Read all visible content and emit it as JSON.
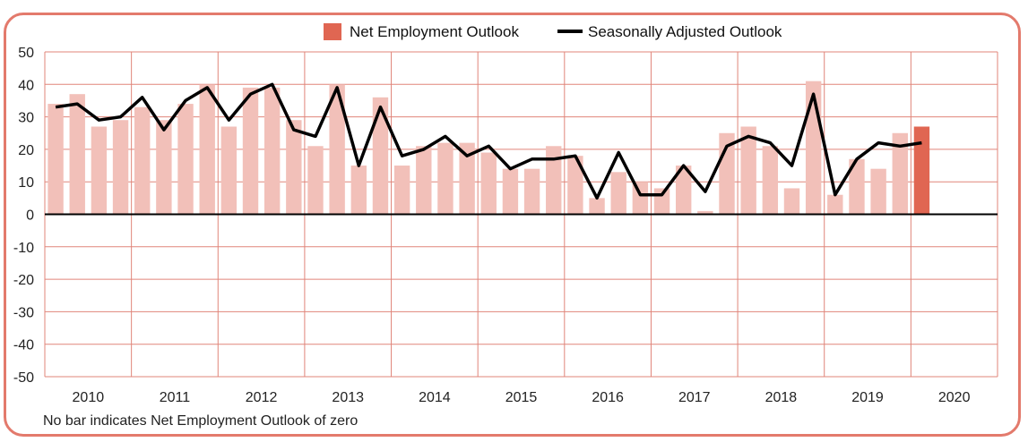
{
  "chart_data": {
    "type": "bar",
    "title": "",
    "xlabel": "",
    "ylabel": "",
    "ylim": [
      -50,
      50
    ],
    "yticks": [
      50,
      40,
      30,
      20,
      10,
      0,
      -10,
      -20,
      -30,
      -40,
      -50
    ],
    "year_labels": [
      "2010",
      "2011",
      "2012",
      "2013",
      "2014",
      "2015",
      "2016",
      "2017",
      "2018",
      "2019",
      "2020"
    ],
    "quarters": [
      "2010 Q1",
      "2010 Q2",
      "2010 Q3",
      "2010 Q4",
      "2011 Q1",
      "2011 Q2",
      "2011 Q3",
      "2011 Q4",
      "2012 Q1",
      "2012 Q2",
      "2012 Q3",
      "2012 Q4",
      "2013 Q1",
      "2013 Q2",
      "2013 Q3",
      "2013 Q4",
      "2014 Q1",
      "2014 Q2",
      "2014 Q3",
      "2014 Q4",
      "2015 Q1",
      "2015 Q2",
      "2015 Q3",
      "2015 Q4",
      "2016 Q1",
      "2016 Q2",
      "2016 Q3",
      "2016 Q4",
      "2017 Q1",
      "2017 Q2",
      "2017 Q3",
      "2017 Q4",
      "2018 Q1",
      "2018 Q2",
      "2018 Q3",
      "2018 Q4",
      "2019 Q1",
      "2019 Q2",
      "2019 Q3",
      "2019 Q4",
      "2020 Q1"
    ],
    "grid": true,
    "legend_position": "top-center",
    "series": [
      {
        "name": "Net Employment Outlook",
        "type": "bar",
        "color": "#f2c0b9",
        "highlight_color": "#e06652",
        "values": [
          34,
          37,
          27,
          29,
          33,
          29,
          34,
          40,
          27,
          39,
          39,
          29,
          21,
          40,
          15,
          36,
          15,
          21,
          22,
          22,
          19,
          14,
          14,
          21,
          18,
          5,
          13,
          10,
          8,
          15,
          1,
          25,
          27,
          21,
          8,
          41,
          6,
          17,
          14,
          25,
          27
        ]
      },
      {
        "name": "Seasonally Adjusted Outlook",
        "type": "line",
        "color": "#000000",
        "values": [
          33,
          34,
          29,
          30,
          36,
          26,
          35,
          39,
          29,
          37,
          40,
          26,
          24,
          39,
          15,
          33,
          18,
          20,
          24,
          18,
          21,
          14,
          17,
          17,
          18,
          5,
          19,
          6,
          6,
          15,
          7,
          21,
          24,
          22,
          15,
          37,
          6,
          17,
          22,
          21,
          22
        ]
      }
    ],
    "note": "No bar indicates Net Employment Outlook of zero"
  },
  "legend": {
    "bar_label": "Net Employment Outlook",
    "line_label": "Seasonally Adjusted Outlook"
  }
}
